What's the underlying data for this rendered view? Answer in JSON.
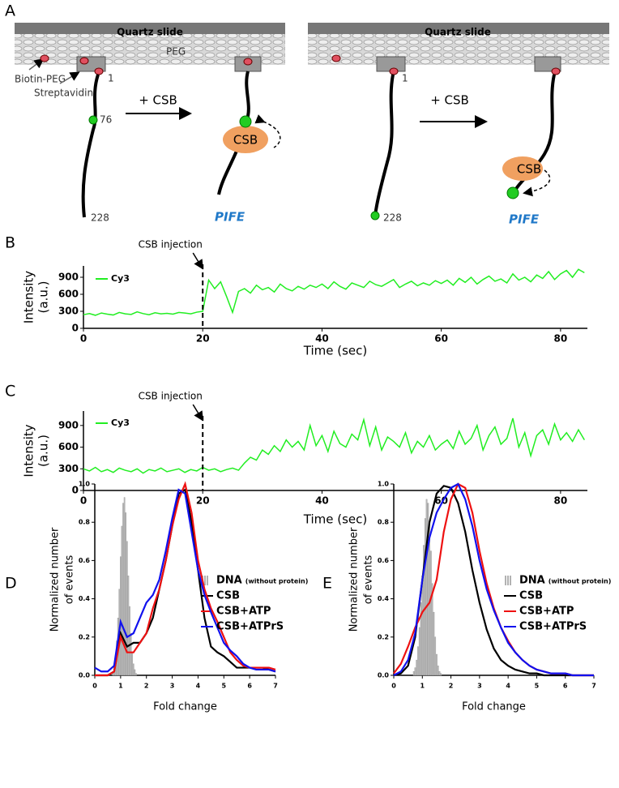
{
  "diagram": {
    "panel": "A",
    "left": {
      "slide": "Quartz slide",
      "peg": "PEG",
      "biotin": "Biotin-PEG",
      "streptavidin": "Streptavidin",
      "pos_1": "1",
      "pos_76": "76",
      "pos_228": "228",
      "arrow": "+ CSB",
      "protein": "CSB",
      "result": "PIFE"
    },
    "right": {
      "slide": "Quartz slide",
      "pos_1": "1",
      "pos_228": "228",
      "arrow": "+ CSB",
      "protein": "CSB",
      "result": "PIFE"
    }
  },
  "chart_data": [
    {
      "panel": "B",
      "type": "line",
      "xlabel": "Time (sec)",
      "ylabel": [
        "Intensity",
        "(a.u.)"
      ],
      "annotation": {
        "text": "CSB injection",
        "x": 20
      },
      "xlim": [
        0,
        84.5
      ],
      "ylim": [
        0,
        1100
      ],
      "xticks": [
        0,
        20,
        40,
        60,
        80
      ],
      "yticks": [
        0,
        300,
        600,
        900
      ],
      "x": [
        0,
        1,
        2,
        3,
        4,
        5,
        6,
        7,
        8,
        9,
        10,
        11,
        12,
        13,
        14,
        15,
        16,
        17,
        18,
        19,
        20,
        21,
        22,
        23,
        24,
        25,
        26,
        27,
        28,
        29,
        30,
        31,
        32,
        33,
        34,
        35,
        36,
        37,
        38,
        39,
        40,
        41,
        42,
        43,
        44,
        45,
        46,
        47,
        48,
        49,
        50,
        51,
        52,
        53,
        54,
        55,
        56,
        57,
        58,
        59,
        60,
        61,
        62,
        63,
        64,
        65,
        66,
        67,
        68,
        69,
        70,
        71,
        72,
        73,
        74,
        75,
        76,
        77,
        78,
        79,
        80,
        81,
        82,
        83,
        84
      ],
      "series": [
        {
          "name": "Cy3",
          "color": "#22ee22",
          "values": [
            240,
            260,
            230,
            270,
            250,
            235,
            280,
            255,
            245,
            290,
            260,
            240,
            275,
            255,
            265,
            250,
            280,
            270,
            255,
            285,
            300,
            850,
            700,
            820,
            560,
            280,
            650,
            700,
            620,
            760,
            680,
            720,
            640,
            780,
            700,
            660,
            740,
            690,
            760,
            720,
            780,
            700,
            820,
            740,
            690,
            800,
            760,
            720,
            830,
            770,
            740,
            800,
            860,
            720,
            780,
            830,
            750,
            800,
            760,
            840,
            790,
            850,
            760,
            880,
            810,
            900,
            780,
            860,
            920,
            830,
            870,
            800,
            960,
            850,
            900,
            820,
            940,
            880,
            1000,
            860,
            960,
            1020,
            900,
            1040,
            980
          ]
        }
      ]
    },
    {
      "panel": "C",
      "type": "line",
      "xlabel": "Time (sec)",
      "ylabel": [
        "Intensity",
        "(a.u.)"
      ],
      "annotation": {
        "text": "CSB injection",
        "x": 20
      },
      "xlim": [
        0,
        84.5
      ],
      "ylim": [
        0,
        1100
      ],
      "xticks": [
        0,
        20,
        40,
        60,
        80
      ],
      "yticks": [
        0,
        300,
        600,
        900
      ],
      "x": [
        0,
        1,
        2,
        3,
        4,
        5,
        6,
        7,
        8,
        9,
        10,
        11,
        12,
        13,
        14,
        15,
        16,
        17,
        18,
        19,
        20,
        21,
        22,
        23,
        24,
        25,
        26,
        27,
        28,
        29,
        30,
        31,
        32,
        33,
        34,
        35,
        36,
        37,
        38,
        39,
        40,
        41,
        42,
        43,
        44,
        45,
        46,
        47,
        48,
        49,
        50,
        51,
        52,
        53,
        54,
        55,
        56,
        57,
        58,
        59,
        60,
        61,
        62,
        63,
        64,
        65,
        66,
        67,
        68,
        69,
        70,
        71,
        72,
        73,
        74,
        75,
        76,
        77,
        78,
        79,
        80,
        81,
        82,
        83,
        84
      ],
      "series": [
        {
          "name": "Cy3",
          "color": "#22ee22",
          "values": [
            300,
            270,
            320,
            260,
            290,
            250,
            310,
            280,
            260,
            300,
            240,
            290,
            270,
            310,
            260,
            280,
            300,
            250,
            290,
            270,
            320,
            280,
            300,
            260,
            290,
            310,
            280,
            380,
            460,
            420,
            560,
            500,
            620,
            540,
            700,
            600,
            680,
            560,
            900,
            620,
            760,
            540,
            820,
            650,
            600,
            780,
            700,
            980,
            620,
            880,
            560,
            740,
            680,
            600,
            800,
            520,
            680,
            600,
            760,
            560,
            640,
            700,
            580,
            820,
            640,
            720,
            900,
            560,
            760,
            880,
            640,
            720,
            1000,
            600,
            800,
            480,
            760,
            840,
            640,
            920,
            700,
            800,
            680,
            840,
            700
          ]
        }
      ]
    },
    {
      "panel": "D",
      "type": "line",
      "xlabel": "Fold change",
      "ylabel": [
        "Normalized number",
        "of events"
      ],
      "xlim": [
        0,
        7
      ],
      "ylim": [
        0,
        1
      ],
      "xticks": [
        0,
        1,
        2,
        3,
        4,
        5,
        6,
        7
      ],
      "yticks": [
        {
          "value": 0,
          "label": "0.0"
        },
        0.2,
        0.4,
        0.6,
        0.8,
        {
          "value": 1,
          "label": "1.0"
        }
      ],
      "x": [
        0,
        0.25,
        0.5,
        0.75,
        1,
        1.25,
        1.5,
        1.75,
        2,
        2.25,
        2.5,
        2.75,
        3,
        3.25,
        3.5,
        3.75,
        4,
        4.25,
        4.5,
        4.75,
        5,
        5.25,
        5.5,
        5.75,
        6,
        6.25,
        6.5,
        6.75,
        7
      ],
      "series": [
        {
          "name": "DNA",
          "note": "(without protein)",
          "style": "bars",
          "color": "#bbbbbb",
          "x": [
            0.7,
            0.75,
            0.8,
            0.85,
            0.9,
            0.95,
            1,
            1.05,
            1.1,
            1.15,
            1.2,
            1.25,
            1.3,
            1.35,
            1.4,
            1.45,
            1.5,
            1.55,
            1.6
          ],
          "values": [
            0.02,
            0.05,
            0.1,
            0.18,
            0.3,
            0.45,
            0.62,
            0.78,
            0.9,
            0.93,
            0.85,
            0.7,
            0.52,
            0.36,
            0.22,
            0.12,
            0.06,
            0.03,
            0.01
          ]
        },
        {
          "name": "CSB",
          "color": "#000000",
          "values": [
            0,
            0,
            0,
            0.02,
            0.22,
            0.15,
            0.17,
            0.17,
            0.22,
            0.3,
            0.45,
            0.6,
            0.78,
            0.95,
            0.97,
            0.8,
            0.55,
            0.3,
            0.15,
            0.12,
            0.1,
            0.07,
            0.04,
            0.04,
            0.04,
            0.04,
            0.04,
            0.03,
            0.02
          ]
        },
        {
          "name": "CSB+ATP",
          "color": "#ee1111",
          "values": [
            0,
            0,
            0,
            0.02,
            0.2,
            0.12,
            0.12,
            0.17,
            0.22,
            0.35,
            0.45,
            0.6,
            0.78,
            0.92,
            1,
            0.85,
            0.6,
            0.45,
            0.35,
            0.28,
            0.2,
            0.12,
            0.08,
            0.05,
            0.04,
            0.04,
            0.04,
            0.04,
            0.03
          ]
        },
        {
          "name": "CSB+ATPrS",
          "color": "#1111ee",
          "values": [
            0.04,
            0.02,
            0.02,
            0.05,
            0.28,
            0.2,
            0.22,
            0.3,
            0.38,
            0.42,
            0.5,
            0.65,
            0.82,
            0.97,
            0.95,
            0.75,
            0.55,
            0.42,
            0.33,
            0.25,
            0.17,
            0.13,
            0.1,
            0.06,
            0.04,
            0.03,
            0.03,
            0.03,
            0.02
          ]
        }
      ]
    },
    {
      "panel": "E",
      "type": "line",
      "xlabel": "Fold change",
      "ylabel": [
        "Normalized number",
        "of events"
      ],
      "xlim": [
        0,
        7
      ],
      "ylim": [
        0,
        1
      ],
      "xticks": [
        0,
        1,
        2,
        3,
        4,
        5,
        6,
        7
      ],
      "yticks": [
        {
          "value": 0,
          "label": "0.0"
        },
        0.2,
        0.4,
        0.6,
        0.8,
        {
          "value": 1,
          "label": "1.0"
        }
      ],
      "x": [
        0,
        0.25,
        0.5,
        0.75,
        1,
        1.25,
        1.5,
        1.75,
        2,
        2.25,
        2.5,
        2.75,
        3,
        3.25,
        3.5,
        3.75,
        4,
        4.25,
        4.5,
        4.75,
        5,
        5.25,
        5.5,
        5.75,
        6,
        6.25,
        6.5,
        6.75,
        7
      ],
      "series": [
        {
          "name": "DNA",
          "note": "(without protein)",
          "style": "bars",
          "color": "#bbbbbb",
          "x": [
            0.7,
            0.75,
            0.8,
            0.85,
            0.9,
            0.95,
            1,
            1.05,
            1.1,
            1.15,
            1.2,
            1.25,
            1.3,
            1.35,
            1.4,
            1.45,
            1.5,
            1.55,
            1.6,
            1.65
          ],
          "values": [
            0.02,
            0.04,
            0.08,
            0.15,
            0.25,
            0.38,
            0.52,
            0.68,
            0.82,
            0.92,
            0.9,
            0.8,
            0.65,
            0.48,
            0.33,
            0.2,
            0.11,
            0.05,
            0.02,
            0.01
          ]
        },
        {
          "name": "CSB",
          "color": "#000000",
          "values": [
            0,
            0.01,
            0.05,
            0.2,
            0.5,
            0.8,
            0.95,
            0.99,
            0.98,
            0.9,
            0.75,
            0.55,
            0.38,
            0.24,
            0.14,
            0.08,
            0.05,
            0.03,
            0.02,
            0.01,
            0.01,
            0,
            0,
            0,
            0,
            0,
            0,
            0,
            0
          ]
        },
        {
          "name": "CSB+ATP",
          "color": "#ee1111",
          "values": [
            0.01,
            0.06,
            0.15,
            0.25,
            0.33,
            0.38,
            0.5,
            0.75,
            0.92,
            1,
            0.98,
            0.85,
            0.65,
            0.48,
            0.35,
            0.25,
            0.18,
            0.12,
            0.08,
            0.05,
            0.03,
            0.02,
            0.01,
            0.01,
            0.01,
            0,
            0,
            0,
            0
          ]
        },
        {
          "name": "CSB+ATPrS",
          "color": "#1111ee",
          "values": [
            0,
            0.02,
            0.08,
            0.22,
            0.5,
            0.72,
            0.85,
            0.92,
            0.98,
            1,
            0.92,
            0.78,
            0.6,
            0.45,
            0.34,
            0.25,
            0.17,
            0.12,
            0.08,
            0.05,
            0.03,
            0.02,
            0.01,
            0.01,
            0.01,
            0,
            0,
            0,
            0
          ]
        }
      ]
    }
  ]
}
